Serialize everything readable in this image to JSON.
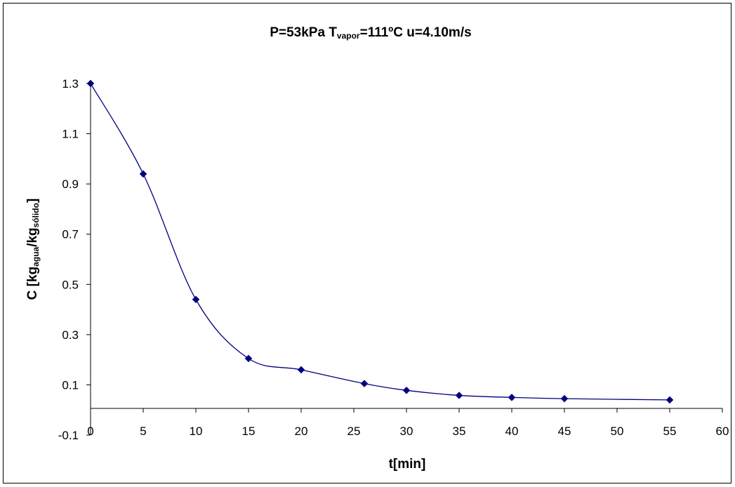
{
  "chart_data": {
    "type": "line",
    "title": {
      "p1": "P=53kPa T",
      "p1_sub": "vapor",
      "p2": "=111ºC u=4.10m/s"
    },
    "xlabel": "t[min]",
    "ylabel": {
      "p1": "C [kg",
      "p1_sub": "agua",
      "p2": "/kg",
      "p2_sub": "sólido",
      "p3": "]"
    },
    "xlim": [
      0,
      60
    ],
    "ylim": [
      -0.1,
      1.3
    ],
    "x_ticks": [
      0,
      5,
      10,
      15,
      20,
      25,
      30,
      35,
      40,
      45,
      50,
      55,
      60
    ],
    "y_ticks": [
      -0.1,
      0.1,
      0.3,
      0.5,
      0.7,
      0.9,
      1.1,
      1.3
    ],
    "series": [
      {
        "color": "#000080",
        "marker": "diamond",
        "x": [
          0,
          5,
          10,
          15,
          20,
          26,
          30,
          35,
          40,
          45,
          55
        ],
        "y": [
          1.3,
          0.94,
          0.44,
          0.205,
          0.16,
          0.105,
          0.078,
          0.058,
          0.05,
          0.045,
          0.04
        ]
      }
    ],
    "grid": false,
    "legend": "none"
  }
}
